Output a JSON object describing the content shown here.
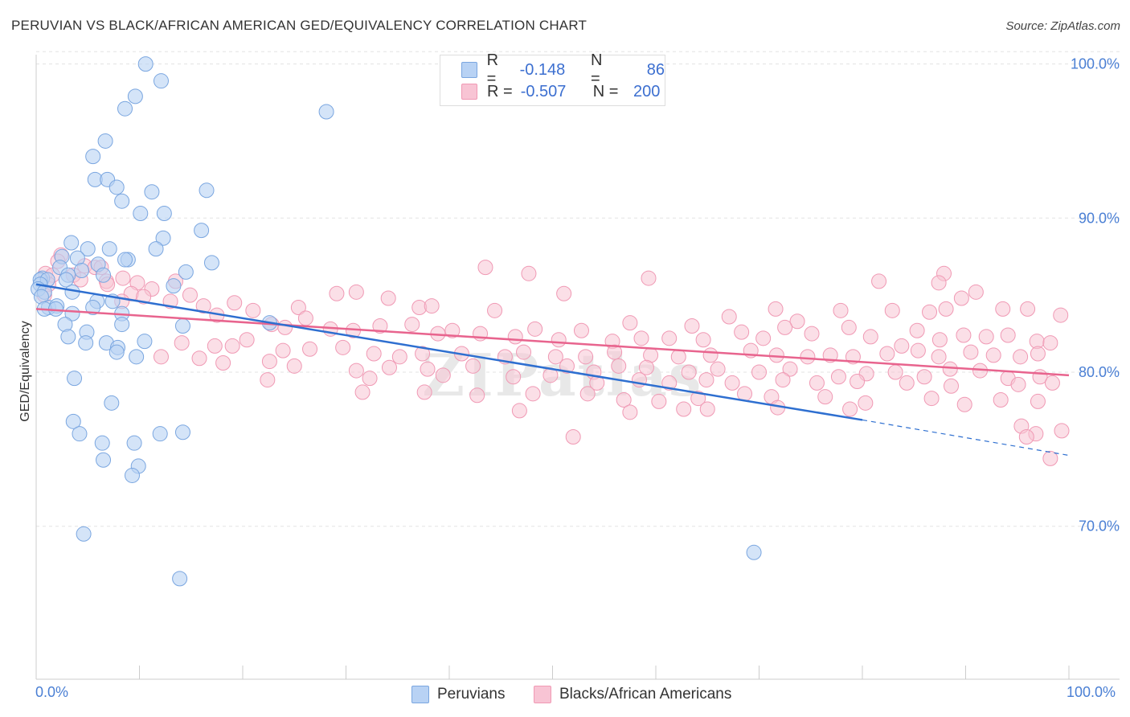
{
  "header": {
    "title": "PERUVIAN VS BLACK/AFRICAN AMERICAN GED/EQUIVALENCY CORRELATION CHART",
    "source": "Source: ZipAtlas.com"
  },
  "legend_top": {
    "rows": [
      {
        "r_label": "R =",
        "r_value": "-0.148",
        "n_label": "N =",
        "n_value": "86"
      },
      {
        "r_label": "R =",
        "r_value": "-0.507",
        "n_label": "N =",
        "n_value": "200"
      }
    ]
  },
  "legend_bottom": {
    "items": [
      {
        "label": "Peruvians"
      },
      {
        "label": "Blacks/African Americans"
      }
    ]
  },
  "colors": {
    "peruvians_fill": "#b8d2f4",
    "peruvians_stroke": "#7aa6e0",
    "peruvians_line": "#2e6fd0",
    "blacks_fill": "#f8c4d4",
    "blacks_stroke": "#f099b4",
    "blacks_line": "#e8648e",
    "tick_text": "#4a7fd4",
    "grid": "#e3e3e3"
  },
  "watermark": "ZIPatlas",
  "chart_data": {
    "type": "scatter",
    "title": "PERUVIAN VS BLACK/AFRICAN AMERICAN GED/EQUIVALENCY CORRELATION CHART",
    "xlabel": "",
    "ylabel": "GED/Equivalency",
    "xlim": [
      0,
      100
    ],
    "ylim": [
      60,
      102
    ],
    "x_tick_labels": [
      "0.0%",
      "100.0%"
    ],
    "y_ticks": [
      70,
      80,
      90,
      100
    ],
    "y_tick_labels": [
      "70.0%",
      "80.0%",
      "90.0%",
      "100.0%"
    ],
    "grid": true,
    "legend_position": "top-center",
    "series": [
      {
        "name": "Peruvians",
        "R": -0.148,
        "N": 86,
        "trend": {
          "x": [
            0,
            80
          ],
          "y": [
            85.7,
            76.9
          ],
          "dashed_extension": {
            "x": [
              80,
              100
            ],
            "y": [
              76.9,
              74.6
            ]
          }
        },
        "points": [
          [
            10.6,
            100.0
          ],
          [
            12.1,
            98.9
          ],
          [
            9.6,
            97.9
          ],
          [
            8.6,
            97.1
          ],
          [
            28.1,
            96.9
          ],
          [
            6.7,
            95.0
          ],
          [
            5.5,
            94.0
          ],
          [
            5.7,
            92.5
          ],
          [
            6.9,
            92.5
          ],
          [
            7.8,
            92.0
          ],
          [
            11.2,
            91.7
          ],
          [
            16.5,
            91.8
          ],
          [
            8.3,
            91.1
          ],
          [
            10.1,
            90.3
          ],
          [
            12.4,
            90.3
          ],
          [
            16.0,
            89.2
          ],
          [
            12.3,
            88.7
          ],
          [
            3.4,
            88.4
          ],
          [
            5.0,
            88.0
          ],
          [
            7.1,
            88.0
          ],
          [
            11.6,
            88.0
          ],
          [
            2.5,
            87.5
          ],
          [
            4.0,
            87.4
          ],
          [
            8.9,
            87.3
          ],
          [
            8.6,
            87.3
          ],
          [
            17.0,
            87.1
          ],
          [
            6.0,
            87.0
          ],
          [
            2.3,
            86.8
          ],
          [
            4.4,
            86.6
          ],
          [
            14.5,
            86.5
          ],
          [
            3.1,
            86.3
          ],
          [
            6.5,
            86.3
          ],
          [
            0.6,
            86.1
          ],
          [
            0.4,
            86.0
          ],
          [
            1.1,
            86.0
          ],
          [
            2.9,
            86.0
          ],
          [
            0.4,
            85.7
          ],
          [
            13.3,
            85.6
          ],
          [
            0.2,
            85.4
          ],
          [
            0.8,
            85.2
          ],
          [
            3.5,
            85.2
          ],
          [
            0.5,
            84.9
          ],
          [
            5.9,
            84.6
          ],
          [
            7.4,
            84.6
          ],
          [
            1.2,
            84.2
          ],
          [
            2.0,
            84.3
          ],
          [
            0.8,
            84.1
          ],
          [
            1.9,
            84.1
          ],
          [
            5.5,
            84.2
          ],
          [
            3.5,
            83.8
          ],
          [
            8.3,
            83.8
          ],
          [
            22.6,
            83.2
          ],
          [
            2.8,
            83.1
          ],
          [
            8.3,
            83.1
          ],
          [
            14.2,
            83.0
          ],
          [
            4.9,
            82.6
          ],
          [
            3.1,
            82.3
          ],
          [
            10.5,
            82.0
          ],
          [
            4.8,
            81.9
          ],
          [
            6.8,
            81.9
          ],
          [
            7.9,
            81.6
          ],
          [
            7.8,
            81.3
          ],
          [
            9.7,
            81.0
          ],
          [
            3.7,
            79.6
          ],
          [
            7.3,
            78.0
          ],
          [
            3.6,
            76.8
          ],
          [
            4.2,
            76.0
          ],
          [
            12.0,
            76.0
          ],
          [
            14.2,
            76.1
          ],
          [
            6.4,
            75.4
          ],
          [
            9.5,
            75.4
          ],
          [
            6.5,
            74.3
          ],
          [
            9.9,
            73.9
          ],
          [
            9.3,
            73.3
          ],
          [
            4.6,
            69.5
          ],
          [
            69.5,
            68.3
          ],
          [
            13.9,
            66.6
          ]
        ]
      },
      {
        "name": "Blacks/African Americans",
        "R": -0.507,
        "N": 200,
        "trend": {
          "x": [
            0,
            100
          ],
          "y": [
            84.1,
            79.8
          ]
        },
        "points": [
          [
            2.4,
            87.6
          ],
          [
            2.1,
            87.2
          ],
          [
            4.7,
            86.9
          ],
          [
            5.7,
            86.8
          ],
          [
            6.3,
            86.8
          ],
          [
            0.9,
            86.4
          ],
          [
            1.6,
            86.3
          ],
          [
            3.6,
            86.3
          ],
          [
            8.4,
            86.1
          ],
          [
            4.3,
            86.0
          ],
          [
            6.8,
            85.9
          ],
          [
            9.8,
            85.8
          ],
          [
            13.5,
            85.9
          ],
          [
            1.2,
            85.7
          ],
          [
            6.9,
            85.7
          ],
          [
            11.2,
            85.4
          ],
          [
            9.2,
            85.1
          ],
          [
            10.4,
            84.9
          ],
          [
            14.9,
            85.0
          ],
          [
            0.8,
            85.0
          ],
          [
            8.3,
            84.6
          ],
          [
            13.0,
            84.6
          ],
          [
            16.2,
            84.3
          ],
          [
            19.2,
            84.5
          ],
          [
            21.0,
            84.0
          ],
          [
            25.4,
            84.2
          ],
          [
            29.1,
            85.1
          ],
          [
            31.0,
            85.2
          ],
          [
            34.1,
            84.8
          ],
          [
            37.1,
            84.2
          ],
          [
            38.3,
            84.3
          ],
          [
            44.4,
            84.0
          ],
          [
            51.1,
            85.1
          ],
          [
            57.5,
            83.2
          ],
          [
            63.5,
            83.0
          ],
          [
            67.1,
            83.6
          ],
          [
            71.6,
            84.1
          ],
          [
            73.7,
            83.3
          ],
          [
            77.9,
            84.0
          ],
          [
            81.6,
            85.9
          ],
          [
            82.9,
            84.0
          ],
          [
            86.5,
            83.9
          ],
          [
            88.1,
            84.1
          ],
          [
            89.6,
            84.8
          ],
          [
            91.0,
            85.2
          ],
          [
            93.6,
            84.1
          ],
          [
            96.0,
            84.1
          ],
          [
            99.2,
            83.7
          ],
          [
            17.5,
            83.7
          ],
          [
            22.8,
            83.1
          ],
          [
            24.1,
            82.9
          ],
          [
            26.1,
            83.5
          ],
          [
            28.5,
            82.8
          ],
          [
            30.7,
            82.7
          ],
          [
            33.3,
            83.0
          ],
          [
            36.4,
            83.1
          ],
          [
            38.9,
            82.5
          ],
          [
            40.3,
            82.7
          ],
          [
            43.0,
            82.5
          ],
          [
            46.4,
            82.3
          ],
          [
            48.3,
            82.8
          ],
          [
            50.6,
            82.1
          ],
          [
            52.8,
            82.7
          ],
          [
            55.8,
            82.0
          ],
          [
            58.6,
            82.2
          ],
          [
            61.3,
            82.2
          ],
          [
            64.6,
            82.1
          ],
          [
            68.3,
            82.6
          ],
          [
            70.4,
            82.2
          ],
          [
            72.5,
            82.9
          ],
          [
            75.1,
            82.5
          ],
          [
            78.7,
            82.9
          ],
          [
            80.8,
            82.3
          ],
          [
            83.8,
            81.7
          ],
          [
            85.3,
            82.7
          ],
          [
            87.5,
            82.1
          ],
          [
            89.8,
            82.4
          ],
          [
            92.0,
            82.3
          ],
          [
            94.1,
            82.4
          ],
          [
            96.9,
            82.0
          ],
          [
            98.2,
            81.9
          ],
          [
            14.1,
            81.9
          ],
          [
            17.3,
            81.7
          ],
          [
            19.0,
            81.7
          ],
          [
            20.4,
            82.1
          ],
          [
            23.9,
            81.4
          ],
          [
            26.5,
            81.5
          ],
          [
            29.7,
            81.6
          ],
          [
            32.7,
            81.2
          ],
          [
            35.2,
            81.0
          ],
          [
            37.4,
            81.2
          ],
          [
            41.2,
            81.2
          ],
          [
            45.4,
            81.0
          ],
          [
            47.2,
            81.3
          ],
          [
            50.3,
            81.0
          ],
          [
            53.2,
            81.0
          ],
          [
            56.0,
            81.3
          ],
          [
            59.5,
            81.1
          ],
          [
            62.2,
            81.0
          ],
          [
            65.3,
            81.1
          ],
          [
            69.2,
            81.4
          ],
          [
            71.7,
            81.1
          ],
          [
            74.7,
            81.0
          ],
          [
            76.9,
            81.1
          ],
          [
            79.1,
            81.0
          ],
          [
            82.4,
            81.2
          ],
          [
            85.4,
            81.4
          ],
          [
            87.4,
            81.0
          ],
          [
            90.5,
            81.3
          ],
          [
            92.7,
            81.1
          ],
          [
            95.3,
            81.0
          ],
          [
            97.0,
            81.2
          ],
          [
            12.1,
            81.0
          ],
          [
            15.8,
            80.9
          ],
          [
            18.1,
            80.6
          ],
          [
            22.6,
            80.7
          ],
          [
            25.0,
            80.4
          ],
          [
            31.0,
            80.1
          ],
          [
            34.2,
            80.3
          ],
          [
            37.9,
            80.2
          ],
          [
            42.3,
            80.4
          ],
          [
            46.2,
            79.7
          ],
          [
            51.4,
            80.4
          ],
          [
            54.0,
            80.0
          ],
          [
            56.4,
            80.4
          ],
          [
            59.1,
            80.3
          ],
          [
            63.2,
            80.0
          ],
          [
            66.0,
            80.2
          ],
          [
            70.0,
            80.0
          ],
          [
            73.0,
            80.2
          ],
          [
            77.7,
            79.7
          ],
          [
            80.4,
            79.9
          ],
          [
            83.2,
            80.0
          ],
          [
            86.0,
            79.7
          ],
          [
            88.5,
            80.2
          ],
          [
            91.4,
            80.1
          ],
          [
            94.1,
            79.6
          ],
          [
            97.2,
            79.7
          ],
          [
            22.4,
            79.5
          ],
          [
            32.3,
            79.6
          ],
          [
            39.4,
            79.8
          ],
          [
            49.8,
            79.8
          ],
          [
            54.3,
            79.3
          ],
          [
            58.4,
            79.5
          ],
          [
            61.3,
            79.3
          ],
          [
            64.9,
            79.5
          ],
          [
            67.4,
            79.3
          ],
          [
            72.3,
            79.5
          ],
          [
            75.6,
            79.3
          ],
          [
            79.5,
            79.4
          ],
          [
            84.3,
            79.3
          ],
          [
            88.6,
            79.1
          ],
          [
            95.1,
            79.2
          ],
          [
            98.4,
            79.3
          ],
          [
            31.6,
            78.7
          ],
          [
            37.6,
            78.7
          ],
          [
            42.7,
            78.5
          ],
          [
            48.1,
            78.6
          ],
          [
            53.4,
            78.6
          ],
          [
            56.9,
            78.2
          ],
          [
            60.3,
            78.1
          ],
          [
            64.1,
            78.3
          ],
          [
            68.6,
            78.6
          ],
          [
            71.2,
            78.4
          ],
          [
            76.4,
            78.4
          ],
          [
            80.3,
            78.0
          ],
          [
            86.7,
            78.3
          ],
          [
            93.4,
            78.2
          ],
          [
            97.0,
            78.1
          ],
          [
            46.8,
            77.5
          ],
          [
            57.5,
            77.4
          ],
          [
            62.7,
            77.6
          ],
          [
            65.0,
            77.6
          ],
          [
            71.8,
            77.7
          ],
          [
            78.8,
            77.6
          ],
          [
            89.9,
            77.9
          ],
          [
            95.4,
            76.5
          ],
          [
            96.8,
            76.0
          ],
          [
            99.3,
            76.2
          ],
          [
            52.0,
            75.8
          ],
          [
            95.9,
            75.8
          ],
          [
            98.2,
            74.4
          ],
          [
            43.5,
            86.8
          ],
          [
            47.7,
            86.4
          ],
          [
            59.3,
            86.1
          ],
          [
            87.9,
            86.4
          ],
          [
            87.4,
            85.8
          ]
        ]
      }
    ]
  }
}
